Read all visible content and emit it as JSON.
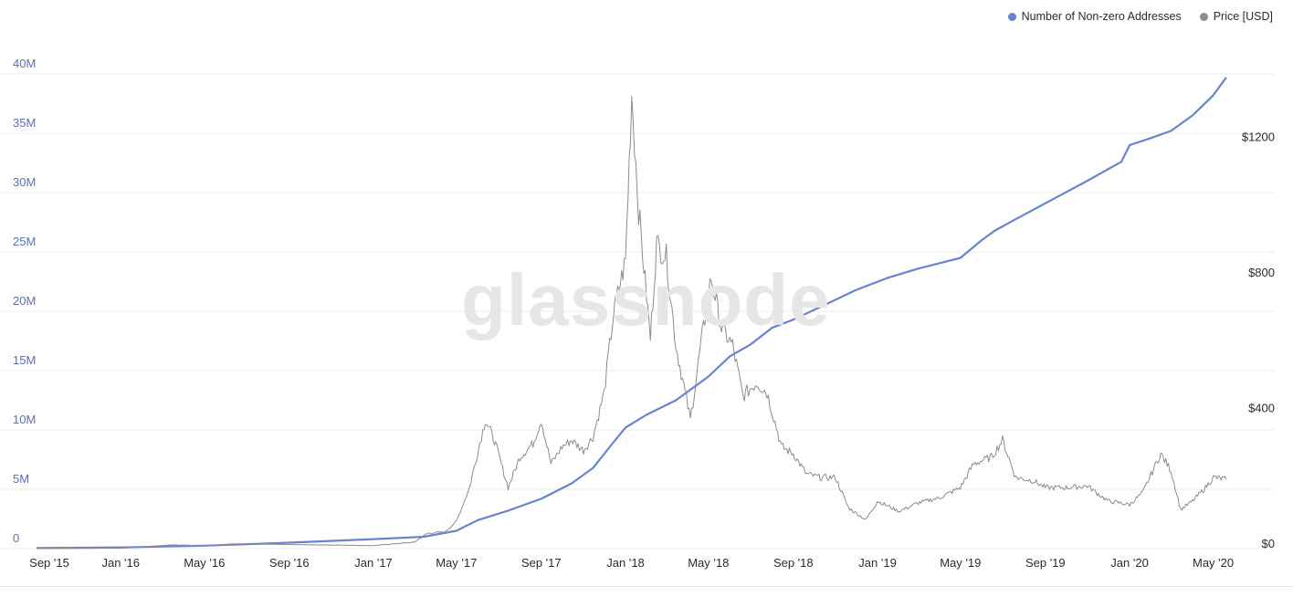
{
  "watermark": "glassnode",
  "colors": {
    "addresses": "#6a83cf",
    "price": "#8c8c8c",
    "left_axis_text": "#5b6fb3",
    "grid": "#eeeeee"
  },
  "chart_data": {
    "type": "line",
    "grid": true,
    "legend_position": "top-right",
    "legend": [
      "Number of Non-zero Addresses",
      "Price [USD]"
    ],
    "x_range": [
      "2015-09-01",
      "2020-06-01"
    ],
    "x_ticks": [
      {
        "date": "2015-09-01",
        "label": "Sep '15"
      },
      {
        "date": "2016-01-01",
        "label": "Jan '16"
      },
      {
        "date": "2016-05-01",
        "label": "May '16"
      },
      {
        "date": "2016-09-01",
        "label": "Sep '16"
      },
      {
        "date": "2017-01-01",
        "label": "Jan '17"
      },
      {
        "date": "2017-05-01",
        "label": "May '17"
      },
      {
        "date": "2017-09-01",
        "label": "Sep '17"
      },
      {
        "date": "2018-01-01",
        "label": "Jan '18"
      },
      {
        "date": "2018-05-01",
        "label": "May '18"
      },
      {
        "date": "2018-09-01",
        "label": "Sep '18"
      },
      {
        "date": "2019-01-01",
        "label": "Jan '19"
      },
      {
        "date": "2019-05-01",
        "label": "May '19"
      },
      {
        "date": "2019-09-01",
        "label": "Sep '19"
      },
      {
        "date": "2020-01-01",
        "label": "Jan '20"
      },
      {
        "date": "2020-05-01",
        "label": "May '20"
      }
    ],
    "y_left": {
      "range": [
        0,
        40000000
      ],
      "ticks": [
        {
          "value": 0,
          "label": "0"
        },
        {
          "value": 5000000,
          "label": "5M"
        },
        {
          "value": 10000000,
          "label": "10M"
        },
        {
          "value": 15000000,
          "label": "15M"
        },
        {
          "value": 20000000,
          "label": "20M"
        },
        {
          "value": 25000000,
          "label": "25M"
        },
        {
          "value": 30000000,
          "label": "30M"
        },
        {
          "value": 35000000,
          "label": "35M"
        },
        {
          "value": 40000000,
          "label": "40M"
        }
      ]
    },
    "y_right": {
      "range": [
        0,
        1400
      ],
      "ticks": [
        {
          "value": 0,
          "label": "$0"
        },
        {
          "value": 400,
          "label": "$400"
        },
        {
          "value": 800,
          "label": "$800"
        },
        {
          "value": 1200,
          "label": "$1200"
        }
      ]
    },
    "series": [
      {
        "name": "Number of Non-zero Addresses",
        "axis": "left",
        "points": [
          [
            "2015-09-01",
            50000
          ],
          [
            "2016-01-01",
            100000
          ],
          [
            "2016-05-01",
            250000
          ],
          [
            "2016-09-01",
            500000
          ],
          [
            "2017-01-01",
            800000
          ],
          [
            "2017-03-15",
            1000000
          ],
          [
            "2017-05-01",
            1500000
          ],
          [
            "2017-06-01",
            2400000
          ],
          [
            "2017-07-15",
            3200000
          ],
          [
            "2017-09-01",
            4200000
          ],
          [
            "2017-10-15",
            5500000
          ],
          [
            "2017-11-15",
            6800000
          ],
          [
            "2017-12-15",
            9000000
          ],
          [
            "2018-01-01",
            10200000
          ],
          [
            "2018-02-01",
            11300000
          ],
          [
            "2018-03-15",
            12500000
          ],
          [
            "2018-05-01",
            14500000
          ],
          [
            "2018-06-01",
            16200000
          ],
          [
            "2018-07-01",
            17200000
          ],
          [
            "2018-08-01",
            18600000
          ],
          [
            "2018-09-01",
            19300000
          ],
          [
            "2018-10-15",
            20500000
          ],
          [
            "2018-12-01",
            21800000
          ],
          [
            "2019-01-15",
            22800000
          ],
          [
            "2019-03-01",
            23600000
          ],
          [
            "2019-05-01",
            24500000
          ],
          [
            "2019-06-01",
            26000000
          ],
          [
            "2019-06-20",
            26800000
          ],
          [
            "2019-07-15",
            27600000
          ],
          [
            "2019-09-01",
            29100000
          ],
          [
            "2019-11-01",
            31000000
          ],
          [
            "2019-12-20",
            32600000
          ],
          [
            "2020-01-01",
            34000000
          ],
          [
            "2020-02-01",
            34600000
          ],
          [
            "2020-03-01",
            35200000
          ],
          [
            "2020-04-01",
            36500000
          ],
          [
            "2020-05-01",
            38200000
          ],
          [
            "2020-05-20",
            39700000
          ]
        ]
      },
      {
        "name": "Price [USD]",
        "axis": "right",
        "points": [
          [
            "2015-09-01",
            0.9
          ],
          [
            "2016-01-01",
            1
          ],
          [
            "2016-03-15",
            11
          ],
          [
            "2016-05-01",
            9
          ],
          [
            "2016-06-15",
            14
          ],
          [
            "2016-09-01",
            12
          ],
          [
            "2017-01-01",
            9
          ],
          [
            "2017-03-01",
            19
          ],
          [
            "2017-03-20",
            45
          ],
          [
            "2017-04-15",
            50
          ],
          [
            "2017-05-01",
            80
          ],
          [
            "2017-05-20",
            180
          ],
          [
            "2017-06-12",
            380
          ],
          [
            "2017-06-25",
            320
          ],
          [
            "2017-07-15",
            180
          ],
          [
            "2017-08-01",
            270
          ],
          [
            "2017-08-20",
            310
          ],
          [
            "2017-09-01",
            380
          ],
          [
            "2017-09-15",
            250
          ],
          [
            "2017-10-01",
            300
          ],
          [
            "2017-10-15",
            320
          ],
          [
            "2017-11-01",
            290
          ],
          [
            "2017-11-15",
            330
          ],
          [
            "2017-12-01",
            460
          ],
          [
            "2017-12-15",
            700
          ],
          [
            "2018-01-01",
            850
          ],
          [
            "2018-01-10",
            1340
          ],
          [
            "2018-01-20",
            1000
          ],
          [
            "2018-02-06",
            620
          ],
          [
            "2018-02-15",
            900
          ],
          [
            "2018-03-01",
            860
          ],
          [
            "2018-03-15",
            600
          ],
          [
            "2018-04-05",
            380
          ],
          [
            "2018-04-20",
            600
          ],
          [
            "2018-05-05",
            800
          ],
          [
            "2018-05-20",
            650
          ],
          [
            "2018-06-05",
            600
          ],
          [
            "2018-06-20",
            450
          ],
          [
            "2018-07-10",
            490
          ],
          [
            "2018-07-25",
            460
          ],
          [
            "2018-08-15",
            300
          ],
          [
            "2018-09-01",
            280
          ],
          [
            "2018-09-20",
            220
          ],
          [
            "2018-10-10",
            210
          ],
          [
            "2018-11-01",
            210
          ],
          [
            "2018-11-20",
            120
          ],
          [
            "2018-12-15",
            85
          ],
          [
            "2019-01-01",
            140
          ],
          [
            "2019-02-01",
            110
          ],
          [
            "2019-03-01",
            135
          ],
          [
            "2019-04-01",
            150
          ],
          [
            "2019-05-01",
            180
          ],
          [
            "2019-05-20",
            250
          ],
          [
            "2019-06-15",
            270
          ],
          [
            "2019-07-01",
            320
          ],
          [
            "2019-07-20",
            210
          ],
          [
            "2019-08-15",
            200
          ],
          [
            "2019-09-01",
            180
          ],
          [
            "2019-10-01",
            180
          ],
          [
            "2019-11-01",
            185
          ],
          [
            "2019-12-01",
            140
          ],
          [
            "2020-01-01",
            130
          ],
          [
            "2020-01-20",
            165
          ],
          [
            "2020-02-15",
            280
          ],
          [
            "2020-03-01",
            230
          ],
          [
            "2020-03-15",
            115
          ],
          [
            "2020-04-01",
            140
          ],
          [
            "2020-04-20",
            180
          ],
          [
            "2020-05-01",
            210
          ],
          [
            "2020-05-20",
            205
          ]
        ]
      }
    ]
  }
}
